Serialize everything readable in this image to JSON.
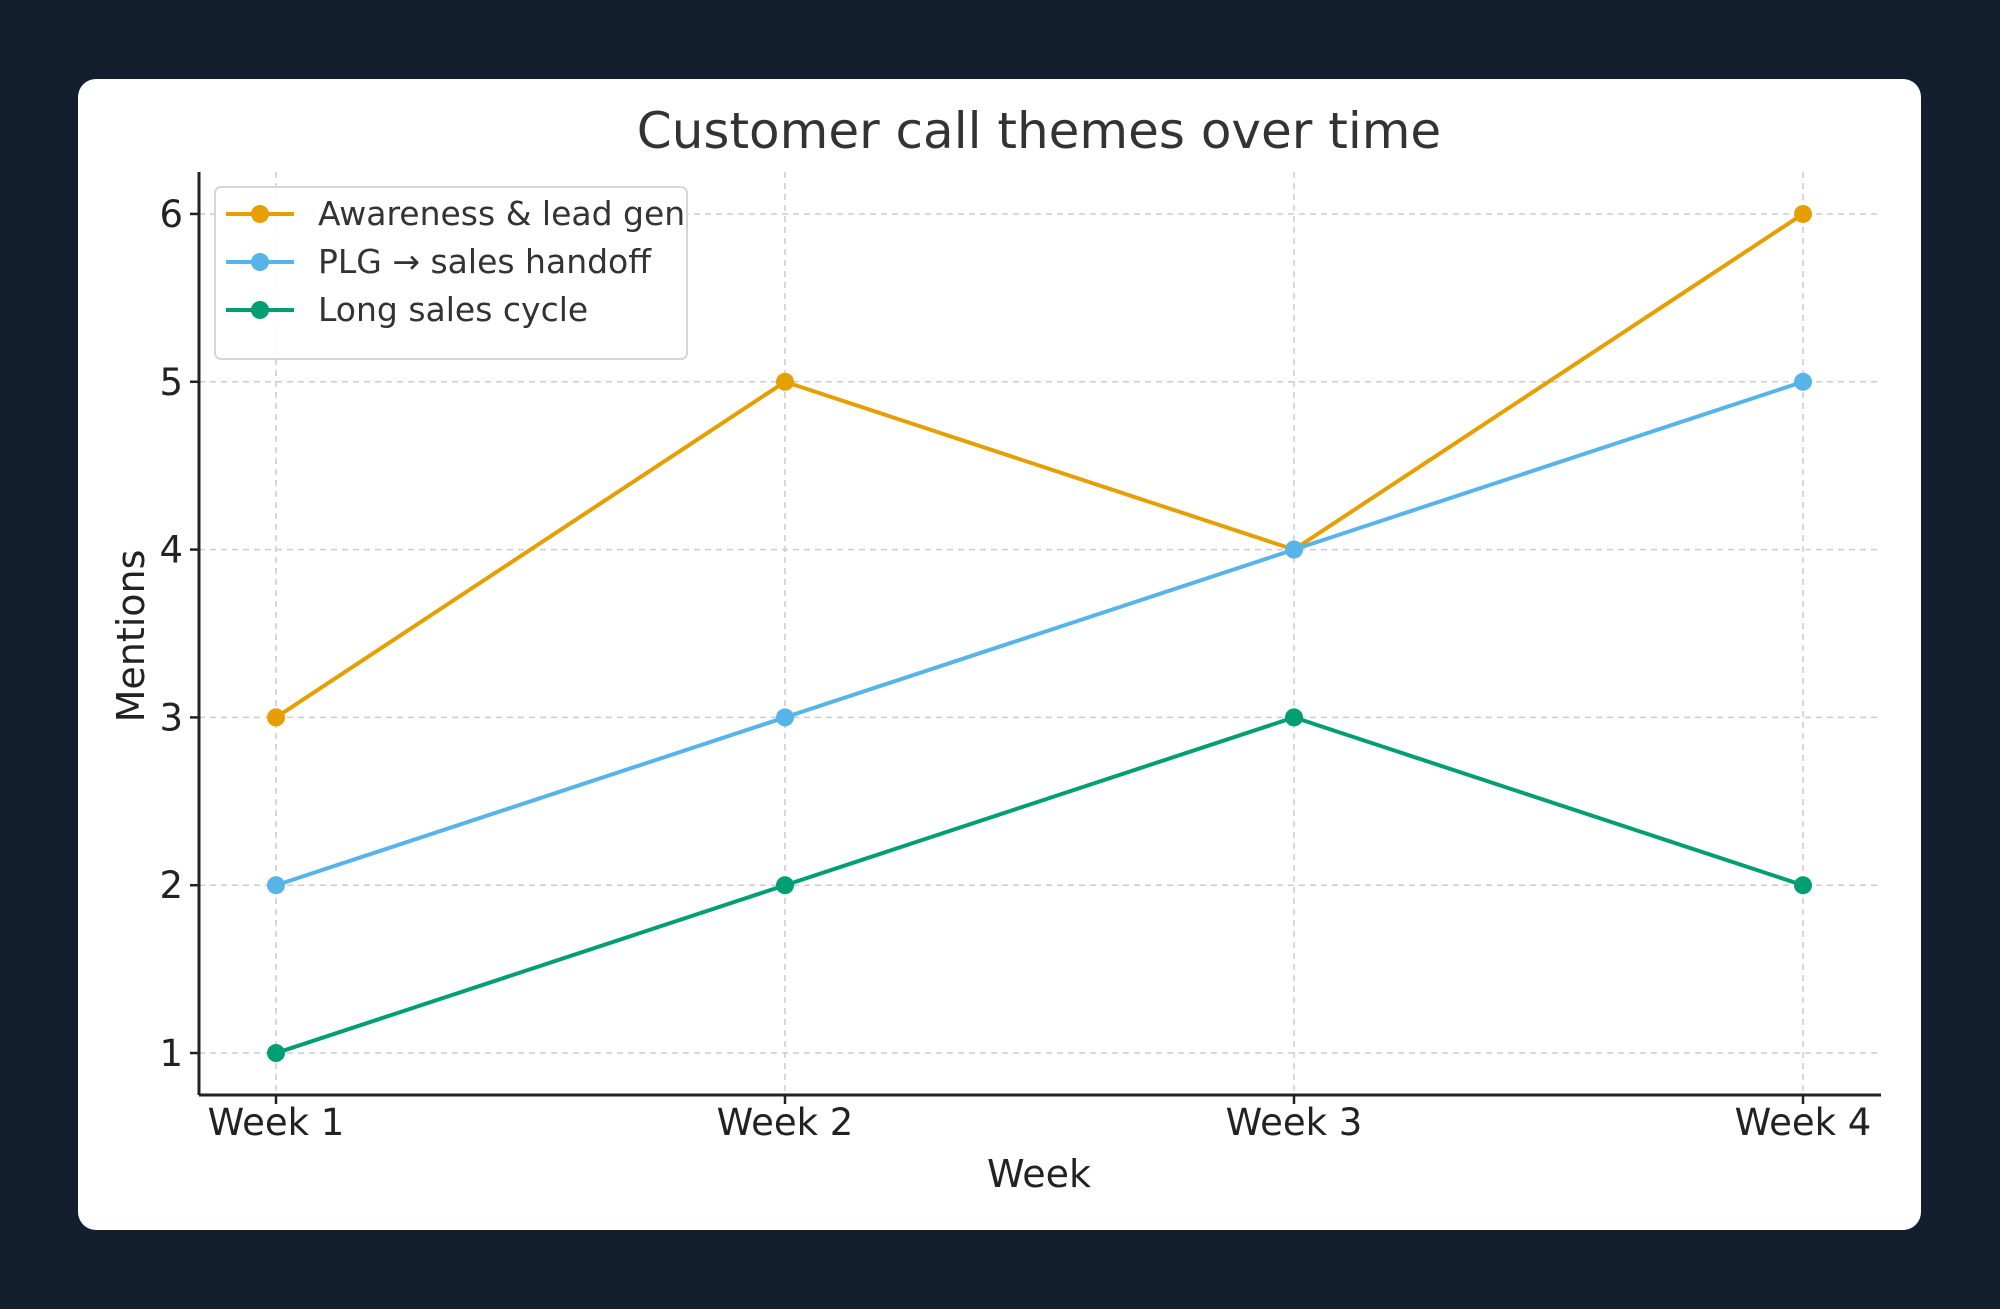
{
  "chart_data": {
    "type": "line",
    "title": "Customer call themes over time",
    "xlabel": "Week",
    "ylabel": "Mentions",
    "categories": [
      "Week 1",
      "Week 2",
      "Week 3",
      "Week 4"
    ],
    "ylim": [
      0.75,
      6.25
    ],
    "yticks": [
      1,
      2,
      3,
      4,
      5,
      6
    ],
    "grid": true,
    "legend_position": "top-left",
    "series": [
      {
        "name": "Awareness & lead gen",
        "values": [
          3,
          5,
          4,
          6
        ],
        "color": "#e69f00"
      },
      {
        "name": "PLG → sales handoff",
        "values": [
          2,
          3,
          4,
          5
        ],
        "color": "#56b4e9"
      },
      {
        "name": "Long sales cycle",
        "values": [
          1,
          2,
          3,
          2
        ],
        "color": "#009e73"
      }
    ]
  }
}
